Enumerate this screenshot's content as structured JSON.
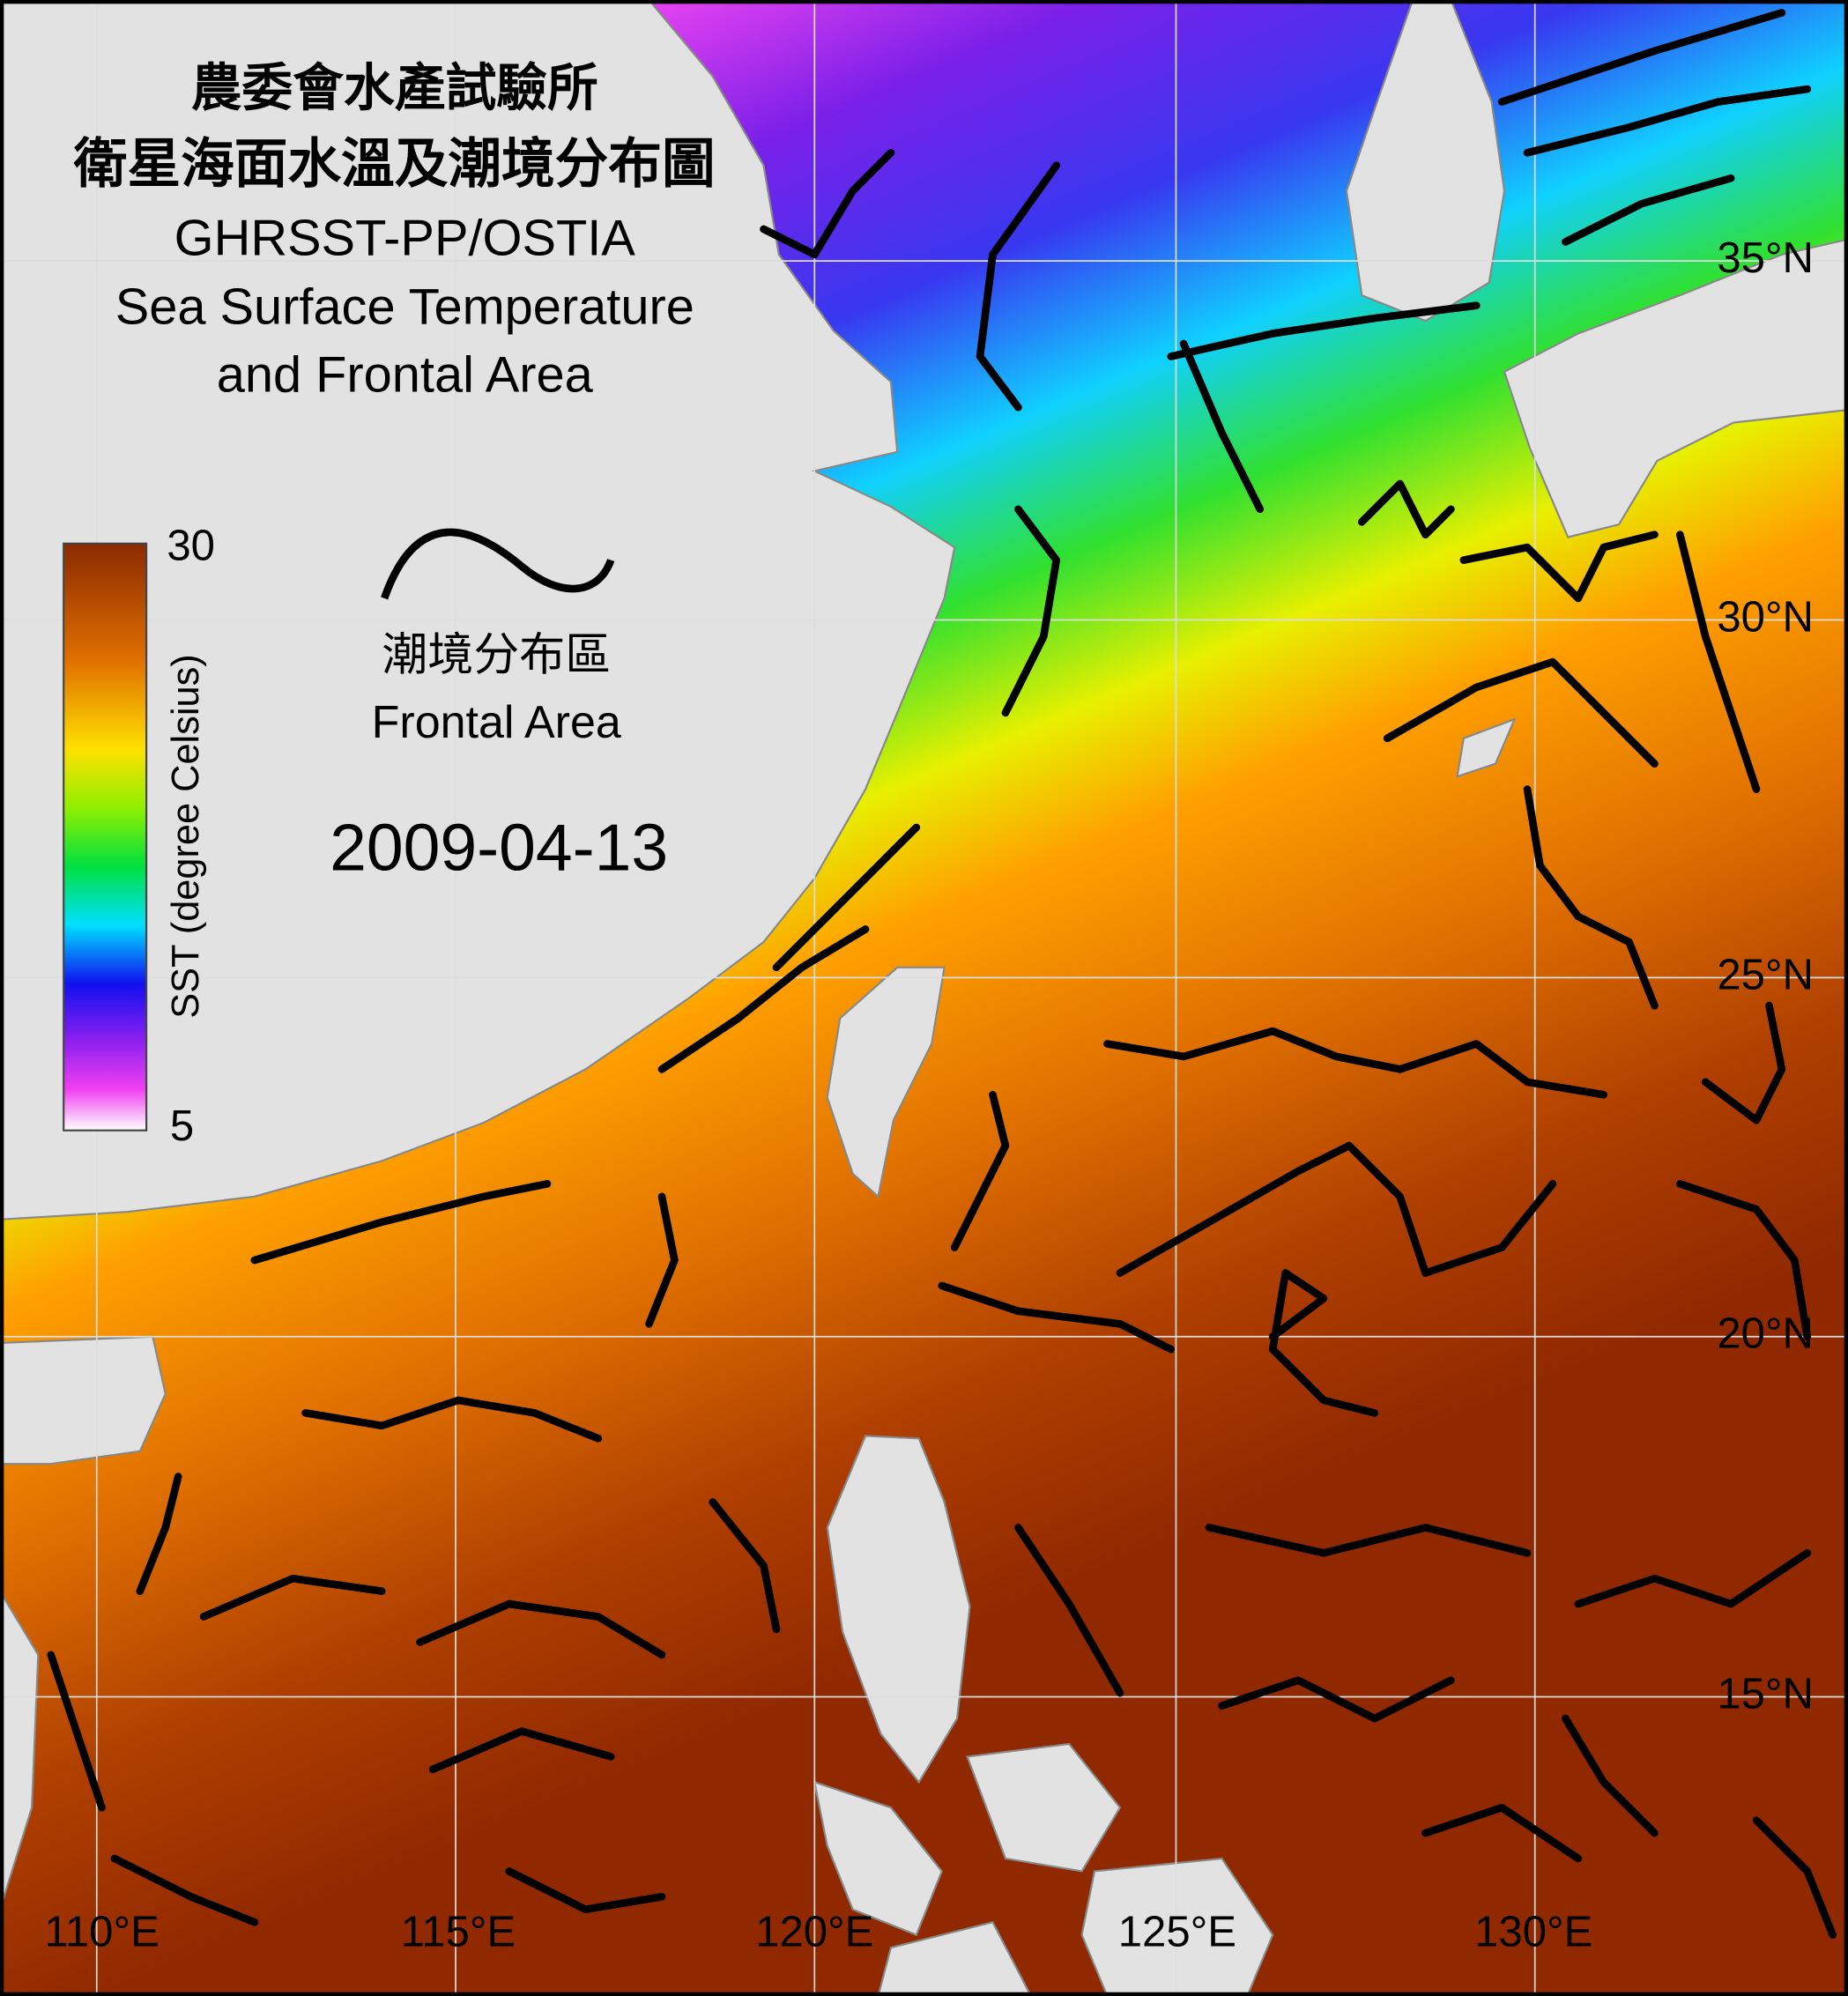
{
  "title": {
    "line1": "農委會水產試驗所",
    "line2": "衛星海面水溫及潮境分布圖",
    "line3": "GHRSST-PP/OSTIA",
    "line4": "Sea Surface Temperature",
    "line5": "and Frontal Area"
  },
  "colorbar": {
    "max_label": "30",
    "min_label": "5",
    "axis_label": "SST (degree Celsius)"
  },
  "legend": {
    "label_zh": "潮境分布區",
    "label_en": "Frontal Area"
  },
  "date": "2009-04-13",
  "latitude_labels": [
    "35°N",
    "30°N",
    "25°N",
    "20°N",
    "15°N"
  ],
  "longitude_labels": [
    "110°E",
    "115°E",
    "120°E",
    "125°E",
    "130°E"
  ]
}
